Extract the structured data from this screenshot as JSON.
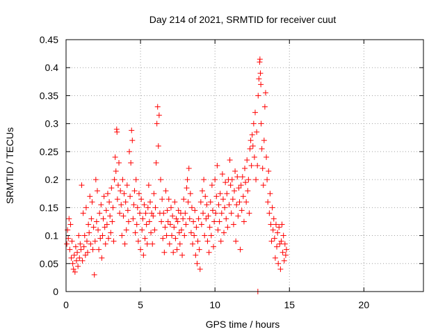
{
  "chart_data": {
    "type": "scatter",
    "title": "Day 214 of 2021, SRMTID for receiver cuut",
    "xlabel": "GPS time / hours",
    "ylabel": "SRMTID / TECUs",
    "xlim": [
      0,
      24
    ],
    "ylim": [
      0,
      0.45
    ],
    "xticks": [
      0,
      5,
      10,
      15,
      20
    ],
    "yticks": [
      0,
      0.05,
      0.1,
      0.15,
      0.2,
      0.25,
      0.3,
      0.35,
      0.4,
      0.45
    ],
    "grid": true,
    "legend": "none",
    "marker": "+",
    "color": "#ff0000",
    "series": [
      {
        "points": [
          [
            0.05,
            0.085
          ],
          [
            0.1,
            0.11
          ],
          [
            0.15,
            0.095
          ],
          [
            0.2,
            0.13
          ],
          [
            0.25,
            0.075
          ],
          [
            0.3,
            0.12
          ],
          [
            0.35,
            0.06
          ],
          [
            0.4,
            0.09
          ],
          [
            0.45,
            0.05
          ],
          [
            0.5,
            0.04
          ],
          [
            0.55,
            0.065
          ],
          [
            0.6,
            0.035
          ],
          [
            0.65,
            0.08
          ],
          [
            0.7,
            0.055
          ],
          [
            0.75,
            0.07
          ],
          [
            0.8,
            0.045
          ],
          [
            0.85,
            0.1
          ],
          [
            0.9,
            0.06
          ],
          [
            0.95,
            0.085
          ],
          [
            1.0,
            0.075
          ],
          [
            1.05,
            0.19
          ],
          [
            1.1,
            0.055
          ],
          [
            1.15,
            0.14
          ],
          [
            1.2,
            0.08
          ],
          [
            1.25,
            0.1
          ],
          [
            1.3,
            0.065
          ],
          [
            1.35,
            0.15
          ],
          [
            1.4,
            0.09
          ],
          [
            1.45,
            0.07
          ],
          [
            1.5,
            0.12
          ],
          [
            1.55,
            0.105
          ],
          [
            1.6,
            0.17
          ],
          [
            1.65,
            0.085
          ],
          [
            1.7,
            0.13
          ],
          [
            1.75,
            0.16
          ],
          [
            1.8,
            0.075
          ],
          [
            1.85,
            0.115
          ],
          [
            1.9,
            0.03
          ],
          [
            1.95,
            0.09
          ],
          [
            2.0,
            0.2
          ],
          [
            2.05,
            0.125
          ],
          [
            2.1,
            0.18
          ],
          [
            2.15,
            0.11
          ],
          [
            2.2,
            0.075
          ],
          [
            2.25,
            0.14
          ],
          [
            2.3,
            0.095
          ],
          [
            2.35,
            0.155
          ],
          [
            2.4,
            0.06
          ],
          [
            2.45,
            0.1
          ],
          [
            2.5,
            0.13
          ],
          [
            2.55,
            0.17
          ],
          [
            2.6,
            0.115
          ],
          [
            2.65,
            0.085
          ],
          [
            2.7,
            0.145
          ],
          [
            2.75,
            0.12
          ],
          [
            2.8,
            0.175
          ],
          [
            2.85,
            0.095
          ],
          [
            2.9,
            0.16
          ],
          [
            2.95,
            0.135
          ],
          [
            3.0,
            0.105
          ],
          [
            3.05,
            0.185
          ],
          [
            3.1,
            0.125
          ],
          [
            3.15,
            0.15
          ],
          [
            3.2,
            0.09
          ],
          [
            3.25,
            0.2
          ],
          [
            3.3,
            0.24
          ],
          [
            3.35,
            0.215
          ],
          [
            3.4,
            0.29
          ],
          [
            3.42,
            0.285
          ],
          [
            3.45,
            0.165
          ],
          [
            3.5,
            0.19
          ],
          [
            3.55,
            0.23
          ],
          [
            3.6,
            0.14
          ],
          [
            3.65,
            0.18
          ],
          [
            3.7,
            0.155
          ],
          [
            3.75,
            0.1
          ],
          [
            3.8,
            0.2
          ],
          [
            3.85,
            0.135
          ],
          [
            3.9,
            0.175
          ],
          [
            3.95,
            0.085
          ],
          [
            4.0,
            0.16
          ],
          [
            4.05,
            0.11
          ],
          [
            4.1,
            0.19
          ],
          [
            4.15,
            0.145
          ],
          [
            4.2,
            0.125
          ],
          [
            4.25,
            0.25
          ],
          [
            4.3,
            0.17
          ],
          [
            4.35,
            0.23
          ],
          [
            4.4,
            0.288
          ],
          [
            4.45,
            0.27
          ],
          [
            4.5,
            0.13
          ],
          [
            4.55,
            0.155
          ],
          [
            4.6,
            0.18
          ],
          [
            4.65,
            0.105
          ],
          [
            4.7,
            0.2
          ],
          [
            4.75,
            0.12
          ],
          [
            4.8,
            0.15
          ],
          [
            4.85,
            0.09
          ],
          [
            4.9,
            0.175
          ],
          [
            4.95,
            0.14
          ],
          [
            5.0,
            0.075
          ],
          [
            5.05,
            0.165
          ],
          [
            5.1,
            0.11
          ],
          [
            5.15,
            0.13
          ],
          [
            5.2,
            0.065
          ],
          [
            5.25,
            0.155
          ],
          [
            5.3,
            0.095
          ],
          [
            5.35,
            0.14
          ],
          [
            5.4,
            0.12
          ],
          [
            5.45,
            0.085
          ],
          [
            5.5,
            0.15
          ],
          [
            5.55,
            0.19
          ],
          [
            5.6,
            0.125
          ],
          [
            5.65,
            0.16
          ],
          [
            5.7,
            0.105
          ],
          [
            5.75,
            0.14
          ],
          [
            5.8,
            0.085
          ],
          [
            5.85,
            0.135
          ],
          [
            5.9,
            0.175
          ],
          [
            5.95,
            0.11
          ],
          [
            6.0,
            0.15
          ],
          [
            6.05,
            0.23
          ],
          [
            6.1,
            0.3
          ],
          [
            6.15,
            0.33
          ],
          [
            6.2,
            0.26
          ],
          [
            6.25,
            0.315
          ],
          [
            6.3,
            0.14
          ],
          [
            6.35,
            0.2
          ],
          [
            6.4,
            0.125
          ],
          [
            6.45,
            0.165
          ],
          [
            6.5,
            0.095
          ],
          [
            6.55,
            0.14
          ],
          [
            6.6,
            0.07
          ],
          [
            6.65,
            0.115
          ],
          [
            6.7,
            0.18
          ],
          [
            6.75,
            0.1
          ],
          [
            6.8,
            0.145
          ],
          [
            6.85,
            0.125
          ],
          [
            6.9,
            0.165
          ],
          [
            6.95,
            0.085
          ],
          [
            7.0,
            0.12
          ],
          [
            7.05,
            0.15
          ],
          [
            7.1,
            0.1
          ],
          [
            7.15,
            0.135
          ],
          [
            7.2,
            0.07
          ],
          [
            7.25,
            0.115
          ],
          [
            7.3,
            0.16
          ],
          [
            7.35,
            0.095
          ],
          [
            7.4,
            0.13
          ],
          [
            7.45,
            0.075
          ],
          [
            7.5,
            0.125
          ],
          [
            7.55,
            0.145
          ],
          [
            7.6,
            0.105
          ],
          [
            7.65,
            0.085
          ],
          [
            7.7,
            0.14
          ],
          [
            7.75,
            0.11
          ],
          [
            7.8,
            0.065
          ],
          [
            7.85,
            0.13
          ],
          [
            7.9,
            0.165
          ],
          [
            7.95,
            0.1
          ],
          [
            8.0,
            0.14
          ],
          [
            8.05,
            0.12
          ],
          [
            8.1,
            0.185
          ],
          [
            8.15,
            0.2
          ],
          [
            8.2,
            0.16
          ],
          [
            8.25,
            0.22
          ],
          [
            8.3,
            0.13
          ],
          [
            8.35,
            0.175
          ],
          [
            8.4,
            0.105
          ],
          [
            8.45,
            0.15
          ],
          [
            8.5,
            0.085
          ],
          [
            8.55,
            0.125
          ],
          [
            8.6,
            0.1
          ],
          [
            8.65,
            0.145
          ],
          [
            8.7,
            0.065
          ],
          [
            8.75,
            0.115
          ],
          [
            8.8,
            0.05
          ],
          [
            8.85,
            0.09
          ],
          [
            8.9,
            0.13
          ],
          [
            8.95,
            0.075
          ],
          [
            9.0,
            0.04
          ],
          [
            9.05,
            0.16
          ],
          [
            9.1,
            0.12
          ],
          [
            9.15,
            0.18
          ],
          [
            9.2,
            0.14
          ],
          [
            9.25,
            0.2
          ],
          [
            9.3,
            0.1
          ],
          [
            9.35,
            0.17
          ],
          [
            9.4,
            0.13
          ],
          [
            9.45,
            0.155
          ],
          [
            9.5,
            0.09
          ],
          [
            9.55,
            0.135
          ],
          [
            9.6,
            0.07
          ],
          [
            9.65,
            0.115
          ],
          [
            9.7,
            0.16
          ],
          [
            9.75,
            0.1
          ],
          [
            9.8,
            0.19
          ],
          [
            9.85,
            0.145
          ],
          [
            9.9,
            0.08
          ],
          [
            9.95,
            0.125
          ],
          [
            10.0,
            0.2
          ],
          [
            10.05,
            0.14
          ],
          [
            10.1,
            0.17
          ],
          [
            10.15,
            0.225
          ],
          [
            10.2,
            0.11
          ],
          [
            10.25,
            0.155
          ],
          [
            10.3,
            0.125
          ],
          [
            10.35,
            0.175
          ],
          [
            10.4,
            0.09
          ],
          [
            10.45,
            0.14
          ],
          [
            10.5,
            0.21
          ],
          [
            10.55,
            0.165
          ],
          [
            10.6,
            0.105
          ],
          [
            10.65,
            0.15
          ],
          [
            10.7,
            0.195
          ],
          [
            10.75,
            0.13
          ],
          [
            10.8,
            0.175
          ],
          [
            10.85,
            0.115
          ],
          [
            10.9,
            0.2
          ],
          [
            10.95,
            0.155
          ],
          [
            11.0,
            0.235
          ],
          [
            11.05,
            0.19
          ],
          [
            11.1,
            0.14
          ],
          [
            11.15,
            0.2
          ],
          [
            11.2,
            0.165
          ],
          [
            11.25,
            0.12
          ],
          [
            11.3,
            0.18
          ],
          [
            11.35,
            0.215
          ],
          [
            11.4,
            0.09
          ],
          [
            11.45,
            0.155
          ],
          [
            11.5,
            0.205
          ],
          [
            11.55,
            0.135
          ],
          [
            11.6,
            0.185
          ],
          [
            11.65,
            0.16
          ],
          [
            11.7,
            0.075
          ],
          [
            11.75,
            0.19
          ],
          [
            11.8,
            0.145
          ],
          [
            11.85,
            0.205
          ],
          [
            11.9,
            0.17
          ],
          [
            11.95,
            0.125
          ],
          [
            12.0,
            0.22
          ],
          [
            12.05,
            0.195
          ],
          [
            12.1,
            0.16
          ],
          [
            12.15,
            0.235
          ],
          [
            12.2,
            0.18
          ],
          [
            12.25,
            0.2
          ],
          [
            12.3,
            0.14
          ],
          [
            12.35,
            0.255
          ],
          [
            12.4,
            0.27
          ],
          [
            12.45,
            0.225
          ],
          [
            12.5,
            0.28
          ],
          [
            12.55,
            0.26
          ],
          [
            12.6,
            0.3
          ],
          [
            12.65,
            0.24
          ],
          [
            12.7,
            0.32
          ],
          [
            12.75,
            0.2
          ],
          [
            12.8,
            0.285
          ],
          [
            12.85,
            0.225
          ],
          [
            12.88,
            0.0
          ],
          [
            12.9,
            0.35
          ],
          [
            12.95,
            0.38
          ],
          [
            13.0,
            0.41
          ],
          [
            13.02,
            0.415
          ],
          [
            13.05,
            0.39
          ],
          [
            13.08,
            0.37
          ],
          [
            13.1,
            0.3
          ],
          [
            13.15,
            0.255
          ],
          [
            13.2,
            0.22
          ],
          [
            13.25,
            0.19
          ],
          [
            13.3,
            0.27
          ],
          [
            13.35,
            0.33
          ],
          [
            13.4,
            0.355
          ],
          [
            13.45,
            0.24
          ],
          [
            13.5,
            0.2
          ],
          [
            13.55,
            0.16
          ],
          [
            13.6,
            0.215
          ],
          [
            13.65,
            0.14
          ],
          [
            13.7,
            0.175
          ],
          [
            13.75,
            0.12
          ],
          [
            13.8,
            0.09
          ],
          [
            13.85,
            0.15
          ],
          [
            13.9,
            0.11
          ],
          [
            13.95,
            0.13
          ],
          [
            14.0,
            0.095
          ],
          [
            14.05,
            0.06
          ],
          [
            14.1,
            0.12
          ],
          [
            14.15,
            0.08
          ],
          [
            14.2,
            0.105
          ],
          [
            14.25,
            0.05
          ],
          [
            14.3,
            0.115
          ],
          [
            14.35,
            0.085
          ],
          [
            14.4,
            0.04
          ],
          [
            14.45,
            0.09
          ],
          [
            14.5,
            0.12
          ],
          [
            14.55,
            0.07
          ],
          [
            14.6,
            0.1
          ],
          [
            14.65,
            0.055
          ],
          [
            14.7,
            0.085
          ],
          [
            14.75,
            0.065
          ],
          [
            14.8,
            0.075
          ]
        ]
      }
    ]
  }
}
